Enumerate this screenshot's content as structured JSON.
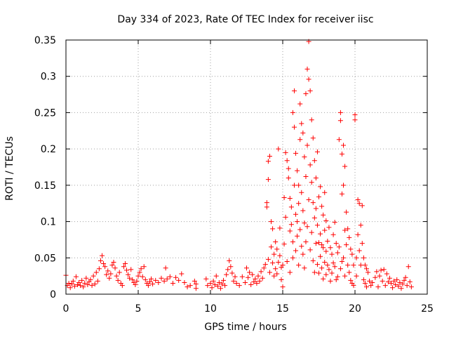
{
  "chart_data": {
    "type": "scatter",
    "title": "Day 334 of 2023, Rate Of TEC Index for receiver iisc",
    "xlabel": "GPS time / hours",
    "ylabel": "ROTI / TECUs",
    "xlim": [
      0,
      25
    ],
    "ylim": [
      0,
      0.35
    ],
    "x_ticks": [
      0,
      5,
      10,
      15,
      20,
      25
    ],
    "x_tick_labels": [
      "0",
      "5",
      "10",
      "15",
      "20",
      "25"
    ],
    "y_ticks": [
      0,
      0.05,
      0.1,
      0.15,
      0.2,
      0.25,
      0.3,
      0.35
    ],
    "y_tick_labels": [
      "0",
      "0.05",
      "0.1",
      "0.15",
      "0.2",
      "0.25",
      "0.3",
      "0.35"
    ],
    "grid": true,
    "marker": "plus",
    "color": "#ff0000",
    "series": [
      {
        "points": [
          [
            0.0,
            0.026
          ],
          [
            0.1,
            0.012
          ],
          [
            0.2,
            0.015
          ],
          [
            0.3,
            0.009
          ],
          [
            0.4,
            0.014
          ],
          [
            0.5,
            0.018
          ],
          [
            0.6,
            0.011
          ],
          [
            0.7,
            0.024
          ],
          [
            0.8,
            0.013
          ],
          [
            0.9,
            0.016
          ],
          [
            1.0,
            0.012
          ],
          [
            1.1,
            0.019
          ],
          [
            1.2,
            0.01
          ],
          [
            1.3,
            0.015
          ],
          [
            1.4,
            0.022
          ],
          [
            1.5,
            0.013
          ],
          [
            1.6,
            0.017
          ],
          [
            1.7,
            0.02
          ],
          [
            1.8,
            0.012
          ],
          [
            1.9,
            0.025
          ],
          [
            2.0,
            0.014
          ],
          [
            2.1,
            0.03
          ],
          [
            2.2,
            0.018
          ],
          [
            2.3,
            0.035
          ],
          [
            2.4,
            0.046
          ],
          [
            2.5,
            0.053
          ],
          [
            2.6,
            0.042
          ],
          [
            2.7,
            0.038
          ],
          [
            2.8,
            0.027
          ],
          [
            2.9,
            0.032
          ],
          [
            3.0,
            0.022
          ],
          [
            3.1,
            0.028
          ],
          [
            3.2,
            0.04
          ],
          [
            3.3,
            0.044
          ],
          [
            3.4,
            0.036
          ],
          [
            3.5,
            0.025
          ],
          [
            3.6,
            0.019
          ],
          [
            3.7,
            0.03
          ],
          [
            3.8,
            0.015
          ],
          [
            3.9,
            0.012
          ],
          [
            4.0,
            0.038
          ],
          [
            4.1,
            0.042
          ],
          [
            4.2,
            0.033
          ],
          [
            4.3,
            0.027
          ],
          [
            4.4,
            0.022
          ],
          [
            4.5,
            0.034
          ],
          [
            4.6,
            0.02
          ],
          [
            4.7,
            0.016
          ],
          [
            4.8,
            0.013
          ],
          [
            4.9,
            0.018
          ],
          [
            5.0,
            0.025
          ],
          [
            5.1,
            0.03
          ],
          [
            5.2,
            0.035
          ],
          [
            5.3,
            0.024
          ],
          [
            5.4,
            0.038
          ],
          [
            5.5,
            0.02
          ],
          [
            5.6,
            0.015
          ],
          [
            5.7,
            0.012
          ],
          [
            5.8,
            0.017
          ],
          [
            5.9,
            0.021
          ],
          [
            6.0,
            0.014
          ],
          [
            6.2,
            0.019
          ],
          [
            6.4,
            0.016
          ],
          [
            6.6,
            0.022
          ],
          [
            6.8,
            0.018
          ],
          [
            6.9,
            0.036
          ],
          [
            7.0,
            0.021
          ],
          [
            7.2,
            0.024
          ],
          [
            7.4,
            0.015
          ],
          [
            7.6,
            0.023
          ],
          [
            7.8,
            0.019
          ],
          [
            8.0,
            0.028
          ],
          [
            8.2,
            0.016
          ],
          [
            8.4,
            0.01
          ],
          [
            8.6,
            0.012
          ],
          [
            8.9,
            0.018
          ],
          [
            9.0,
            0.014
          ],
          [
            9.0,
            0.008
          ],
          [
            9.7,
            0.021
          ],
          [
            9.8,
            0.012
          ],
          [
            10.0,
            0.015
          ],
          [
            10.1,
            0.009
          ],
          [
            10.2,
            0.018
          ],
          [
            10.3,
            0.013
          ],
          [
            10.4,
            0.025
          ],
          [
            10.5,
            0.011
          ],
          [
            10.6,
            0.016
          ],
          [
            10.7,
            0.008
          ],
          [
            10.8,
            0.014
          ],
          [
            10.9,
            0.019
          ],
          [
            11.0,
            0.012
          ],
          [
            11.1,
            0.027
          ],
          [
            11.2,
            0.034
          ],
          [
            11.3,
            0.046
          ],
          [
            11.4,
            0.038
          ],
          [
            11.5,
            0.029
          ],
          [
            11.6,
            0.018
          ],
          [
            11.7,
            0.024
          ],
          [
            11.8,
            0.015
          ],
          [
            12.0,
            0.012
          ],
          [
            12.2,
            0.024
          ],
          [
            12.4,
            0.016
          ],
          [
            12.5,
            0.036
          ],
          [
            12.6,
            0.023
          ],
          [
            12.7,
            0.03
          ],
          [
            12.8,
            0.013
          ],
          [
            12.9,
            0.027
          ],
          [
            13.0,
            0.017
          ],
          [
            13.1,
            0.021
          ],
          [
            13.2,
            0.015
          ],
          [
            13.3,
            0.025
          ],
          [
            13.4,
            0.018
          ],
          [
            13.5,
            0.031
          ],
          [
            13.6,
            0.022
          ],
          [
            13.7,
            0.036
          ],
          [
            13.8,
            0.041
          ],
          [
            13.9,
            0.126
          ],
          [
            13.9,
            0.12
          ],
          [
            14.0,
            0.158
          ],
          [
            14.0,
            0.183
          ],
          [
            14.0,
            0.048
          ],
          [
            14.1,
            0.19
          ],
          [
            14.1,
            0.03
          ],
          [
            14.2,
            0.065
          ],
          [
            14.2,
            0.1
          ],
          [
            14.3,
            0.09
          ],
          [
            14.3,
            0.043
          ],
          [
            14.4,
            0.055
          ],
          [
            14.4,
            0.025
          ],
          [
            14.5,
            0.072
          ],
          [
            14.5,
            0.035
          ],
          [
            14.6,
            0.028
          ],
          [
            14.6,
            0.062
          ],
          [
            14.7,
            0.2
          ],
          [
            14.7,
            0.044
          ],
          [
            14.8,
            0.091
          ],
          [
            14.8,
            0.053
          ],
          [
            14.9,
            0.037
          ],
          [
            14.9,
            0.02
          ],
          [
            15.0,
            0.04
          ],
          [
            15.0,
            0.01
          ],
          [
            15.1,
            0.069
          ],
          [
            15.1,
            0.133
          ],
          [
            15.2,
            0.106
          ],
          [
            15.2,
            0.195
          ],
          [
            15.3,
            0.184
          ],
          [
            15.3,
            0.045
          ],
          [
            15.4,
            0.173
          ],
          [
            15.4,
            0.16
          ],
          [
            15.5,
            0.132
          ],
          [
            15.5,
            0.087
          ],
          [
            15.5,
            0.03
          ],
          [
            15.6,
            0.12
          ],
          [
            15.6,
            0.096
          ],
          [
            15.7,
            0.25
          ],
          [
            15.7,
            0.072
          ],
          [
            15.7,
            0.05
          ],
          [
            15.8,
            0.28
          ],
          [
            15.8,
            0.23
          ],
          [
            15.8,
            0.15
          ],
          [
            15.9,
            0.194
          ],
          [
            15.9,
            0.11
          ],
          [
            15.9,
            0.06
          ],
          [
            16.0,
            0.1
          ],
          [
            16.0,
            0.17
          ],
          [
            16.0,
            0.08
          ],
          [
            16.1,
            0.15
          ],
          [
            16.1,
            0.125
          ],
          [
            16.1,
            0.04
          ],
          [
            16.2,
            0.262
          ],
          [
            16.2,
            0.213
          ],
          [
            16.2,
            0.089
          ],
          [
            16.3,
            0.235
          ],
          [
            16.3,
            0.14
          ],
          [
            16.3,
            0.066
          ],
          [
            16.4,
            0.222
          ],
          [
            16.4,
            0.115
          ],
          [
            16.4,
            0.055
          ],
          [
            16.5,
            0.189
          ],
          [
            16.5,
            0.098
          ],
          [
            16.5,
            0.036
          ],
          [
            16.6,
            0.276
          ],
          [
            16.6,
            0.162
          ],
          [
            16.6,
            0.072
          ],
          [
            16.7,
            0.31
          ],
          [
            16.7,
            0.205
          ],
          [
            16.7,
            0.093
          ],
          [
            16.8,
            0.348
          ],
          [
            16.8,
            0.296
          ],
          [
            16.8,
            0.13
          ],
          [
            16.9,
            0.28
          ],
          [
            16.9,
            0.178
          ],
          [
            16.9,
            0.061
          ],
          [
            17.0,
            0.24
          ],
          [
            17.0,
            0.154
          ],
          [
            17.0,
            0.085
          ],
          [
            17.1,
            0.215
          ],
          [
            17.1,
            0.126
          ],
          [
            17.1,
            0.046
          ],
          [
            17.2,
            0.184
          ],
          [
            17.2,
            0.105
          ],
          [
            17.2,
            0.03
          ],
          [
            17.3,
            0.16
          ],
          [
            17.3,
            0.118
          ],
          [
            17.3,
            0.07
          ],
          [
            17.4,
            0.196
          ],
          [
            17.4,
            0.095
          ],
          [
            17.4,
            0.041
          ],
          [
            17.5,
            0.134
          ],
          [
            17.5,
            0.071
          ],
          [
            17.5,
            0.029
          ],
          [
            17.6,
            0.148
          ],
          [
            17.6,
            0.083
          ],
          [
            17.6,
            0.052
          ],
          [
            17.7,
            0.121
          ],
          [
            17.7,
            0.068
          ],
          [
            17.7,
            0.036
          ],
          [
            17.8,
            0.109
          ],
          [
            17.8,
            0.064
          ],
          [
            17.8,
            0.021
          ],
          [
            17.9,
            0.14
          ],
          [
            17.9,
            0.088
          ],
          [
            17.9,
            0.044
          ],
          [
            18.0,
            0.101
          ],
          [
            18.0,
            0.059
          ],
          [
            18.0,
            0.027
          ],
          [
            18.1,
            0.073
          ],
          [
            18.1,
            0.04
          ],
          [
            18.2,
            0.092
          ],
          [
            18.2,
            0.034
          ],
          [
            18.3,
            0.064
          ],
          [
            18.3,
            0.018
          ],
          [
            18.4,
            0.055
          ],
          [
            18.4,
            0.029
          ],
          [
            18.5,
            0.082
          ],
          [
            18.5,
            0.043
          ],
          [
            18.6,
            0.099
          ],
          [
            18.6,
            0.038
          ],
          [
            18.7,
            0.07
          ],
          [
            18.7,
            0.02
          ],
          [
            18.8,
            0.057
          ],
          [
            18.8,
            0.024
          ],
          [
            18.9,
            0.213
          ],
          [
            18.9,
            0.065
          ],
          [
            19.0,
            0.25
          ],
          [
            19.0,
            0.239
          ],
          [
            19.0,
            0.035
          ],
          [
            19.1,
            0.193
          ],
          [
            19.1,
            0.138
          ],
          [
            19.1,
            0.045
          ],
          [
            19.2,
            0.205
          ],
          [
            19.2,
            0.15
          ],
          [
            19.2,
            0.05
          ],
          [
            19.3,
            0.176
          ],
          [
            19.3,
            0.088
          ],
          [
            19.3,
            0.025
          ],
          [
            19.4,
            0.113
          ],
          [
            19.4,
            0.068
          ],
          [
            19.5,
            0.09
          ],
          [
            19.5,
            0.04
          ],
          [
            19.6,
            0.078
          ],
          [
            19.6,
            0.03
          ],
          [
            19.7,
            0.062
          ],
          [
            19.7,
            0.019
          ],
          [
            19.8,
            0.055
          ],
          [
            19.8,
            0.015
          ],
          [
            19.9,
            0.04
          ],
          [
            19.9,
            0.012
          ],
          [
            20.0,
            0.247
          ],
          [
            20.0,
            0.24
          ],
          [
            20.1,
            0.05
          ],
          [
            20.1,
            0.025
          ],
          [
            20.2,
            0.13
          ],
          [
            20.2,
            0.082
          ],
          [
            20.3,
            0.125
          ],
          [
            20.3,
            0.06
          ],
          [
            20.4,
            0.095
          ],
          [
            20.4,
            0.04
          ],
          [
            20.5,
            0.122
          ],
          [
            20.5,
            0.07
          ],
          [
            20.6,
            0.05
          ],
          [
            20.6,
            0.02
          ],
          [
            20.7,
            0.04
          ],
          [
            20.7,
            0.015
          ],
          [
            20.8,
            0.035
          ],
          [
            20.8,
            0.01
          ],
          [
            20.9,
            0.03
          ],
          [
            21.0,
            0.018
          ],
          [
            21.1,
            0.012
          ],
          [
            21.2,
            0.016
          ],
          [
            21.4,
            0.023
          ],
          [
            21.5,
            0.031
          ],
          [
            21.6,
            0.01
          ],
          [
            21.7,
            0.025
          ],
          [
            21.8,
            0.033
          ],
          [
            21.9,
            0.018
          ],
          [
            22.0,
            0.034
          ],
          [
            22.1,
            0.012
          ],
          [
            22.2,
            0.028
          ],
          [
            22.3,
            0.017
          ],
          [
            22.4,
            0.022
          ],
          [
            22.5,
            0.015
          ],
          [
            22.6,
            0.009
          ],
          [
            22.7,
            0.018
          ],
          [
            22.8,
            0.013
          ],
          [
            22.9,
            0.02
          ],
          [
            23.0,
            0.011
          ],
          [
            23.1,
            0.016
          ],
          [
            23.2,
            0.008
          ],
          [
            23.3,
            0.014
          ],
          [
            23.4,
            0.019
          ],
          [
            23.5,
            0.023
          ],
          [
            23.6,
            0.012
          ],
          [
            23.7,
            0.038
          ],
          [
            23.8,
            0.017
          ],
          [
            23.9,
            0.01
          ]
        ]
      }
    ]
  }
}
